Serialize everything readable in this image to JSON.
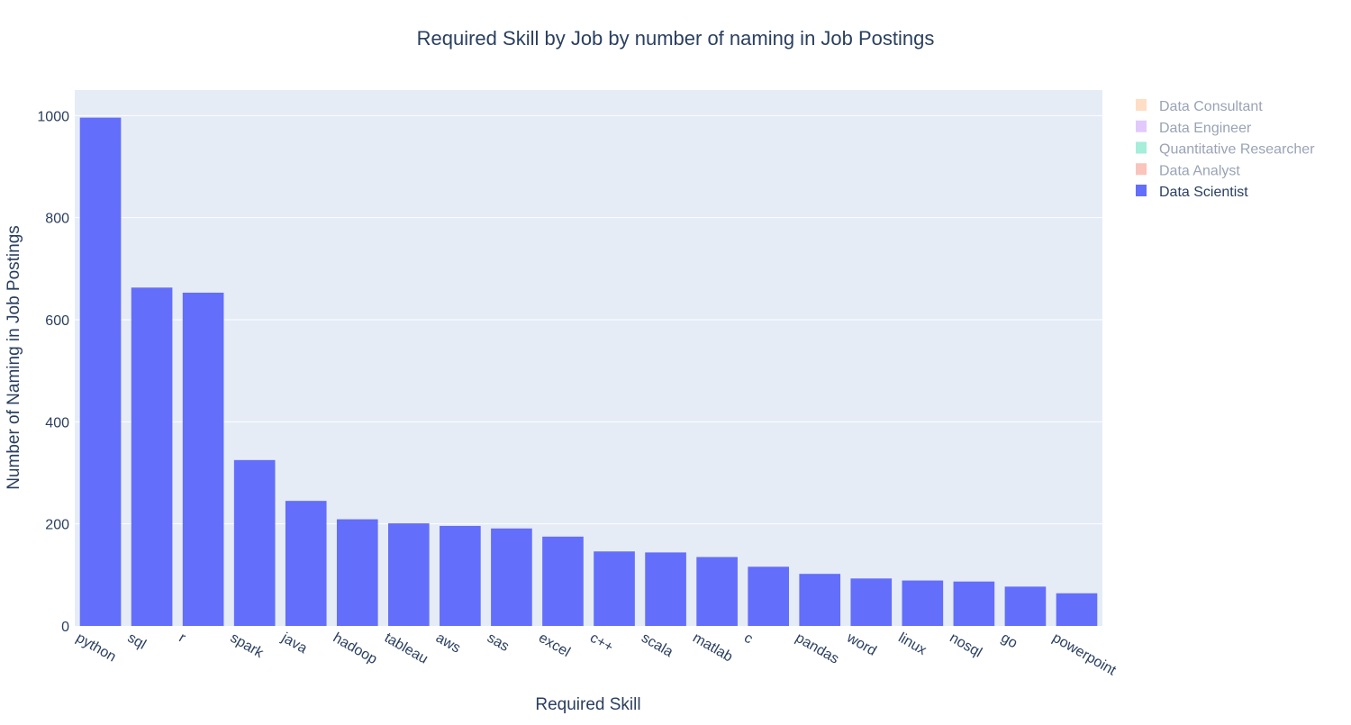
{
  "chart_data": {
    "type": "bar",
    "title": "Required Skill by Job by number of naming in Job Postings",
    "xlabel": "Required Skill",
    "ylabel": "Number of Naming in Job Postings",
    "ylim": [
      0,
      1050
    ],
    "yticks": [
      0,
      200,
      400,
      600,
      800,
      1000
    ],
    "yticklabels": [
      "0",
      "200",
      "400",
      "600",
      "800",
      "1000"
    ],
    "grid": true,
    "legend_position": "top-right",
    "categories": [
      "python",
      "sql",
      "r",
      "spark",
      "java",
      "hadoop",
      "tableau",
      "aws",
      "sas",
      "excel",
      "c++",
      "scala",
      "matlab",
      "c",
      "pandas",
      "word",
      "linux",
      "nosql",
      "go",
      "powerpoint"
    ],
    "series": [
      {
        "name": "Data Scientist",
        "color": "#636efa",
        "visible": true,
        "values": [
          996,
          663,
          653,
          325,
          245,
          209,
          201,
          196,
          191,
          175,
          146,
          144,
          135,
          116,
          102,
          93,
          89,
          87,
          77,
          64
        ]
      }
    ],
    "legend": [
      {
        "name": "Data Consultant",
        "color": "#ffa15a",
        "visible": false
      },
      {
        "name": "Data Engineer",
        "color": "#ab63fa",
        "visible": false
      },
      {
        "name": "Quantitative Researcher",
        "color": "#00cc96",
        "visible": false
      },
      {
        "name": "Data Analyst",
        "color": "#ef553b",
        "visible": false
      },
      {
        "name": "Data Scientist",
        "color": "#636efa",
        "visible": true
      }
    ],
    "colors": {
      "plot_bg": "#e5ecf6",
      "grid": "#ffffff",
      "text": "#2a3f5f",
      "hidden_text": "#9aa3b5"
    }
  }
}
